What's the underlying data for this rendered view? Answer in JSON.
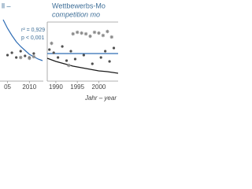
{
  "chart_data": [
    {
      "type": "scatter",
      "title": "ll –",
      "annotations": [
        "r² = 0,929",
        "p < 0,001"
      ],
      "xlim": [
        2004,
        2013
      ],
      "ylim": [
        0,
        85
      ],
      "xticks": [
        {
          "value": 2005,
          "label": "05"
        },
        2010
      ],
      "series": [
        {
          "mode": "line",
          "color": "#2f6db5",
          "x": [
            2004,
            2005,
            2006,
            2007,
            2008,
            2009,
            2010,
            2011,
            2012,
            2013
          ],
          "values": [
            78,
            67,
            58,
            50,
            44,
            39,
            34,
            31,
            28,
            26
          ]
        },
        {
          "mode": "markers",
          "marker": "dot",
          "color": "#505050",
          "x": [
            2005,
            2006,
            2007,
            2008,
            2009,
            2010,
            2011
          ],
          "values": [
            33,
            36,
            30,
            38,
            32,
            30,
            35
          ]
        },
        {
          "mode": "markers",
          "marker": "star",
          "color": "#8a8a8a",
          "x": [
            2008,
            2010,
            2011
          ],
          "values": [
            30,
            29,
            31
          ]
        }
      ]
    },
    {
      "type": "scatter",
      "title": "Wettbewerbs-Mo",
      "subtitle": "competition mo",
      "xlabel": "Jahr – year",
      "xlim": [
        1988,
        2004.5
      ],
      "ylim": [
        0,
        75
      ],
      "xticks": [
        1990,
        1995,
        2000
      ],
      "series": [
        {
          "mode": "line",
          "color": "#2f6db5",
          "x": [
            1988,
            2004.5
          ],
          "values": [
            35,
            35
          ]
        },
        {
          "mode": "line",
          "color": "#1a1a1a",
          "x": [
            1988,
            1990,
            1992,
            1994,
            1996,
            1998,
            2000,
            2002,
            2004.5
          ],
          "values": [
            29,
            25,
            22,
            19,
            17,
            15,
            13,
            12,
            10
          ]
        },
        {
          "mode": "markers",
          "marker": "star",
          "color": "#8a8a8a",
          "x": [
            1989,
            1993,
            1994,
            1995,
            1996,
            1997,
            1998,
            1999,
            2000,
            2001,
            2002,
            2003
          ],
          "values": [
            48,
            20,
            60,
            62,
            61,
            60,
            57,
            62,
            61,
            58,
            63,
            56
          ]
        },
        {
          "mode": "markers",
          "marker": "dot",
          "color": "#505050",
          "x": [
            1988.5,
            1989.5,
            1990.5,
            1991.5,
            1992.5,
            1993.5,
            1994.5,
            1996.5,
            1998.5,
            2000.5,
            2001.5,
            2002.5,
            2003.5
          ],
          "values": [
            40,
            36,
            30,
            44,
            26,
            38,
            28,
            33,
            22,
            30,
            38,
            25,
            42
          ]
        }
      ]
    }
  ]
}
